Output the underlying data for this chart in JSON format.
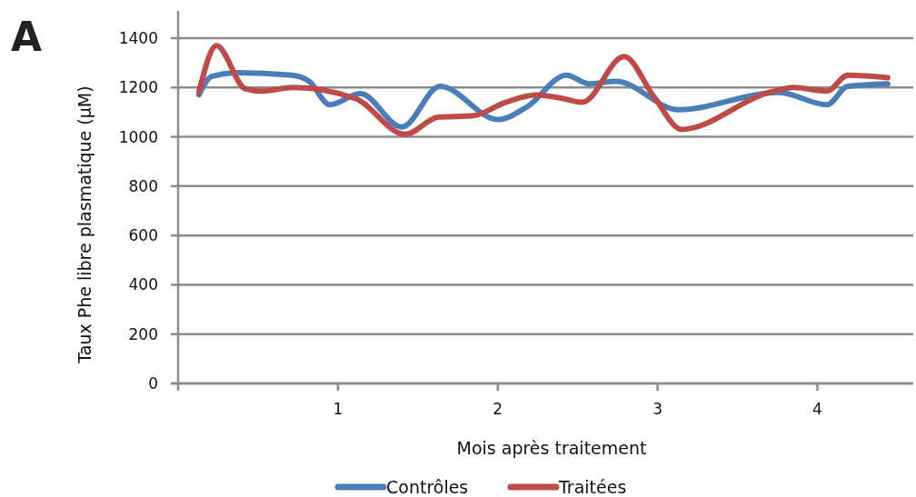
{
  "chart_data": {
    "type": "line",
    "xlabel": "Mois après traitement",
    "ylabel": "Taux Phe libre plasmatique (µM)",
    "annotations": [
      "A"
    ],
    "xlim": [
      0,
      4.6
    ],
    "xticks": [
      1,
      2,
      3,
      4
    ],
    "ylim": [
      0,
      1400
    ],
    "yticks": [
      0,
      200,
      400,
      600,
      800,
      1000,
      1200,
      1400
    ],
    "grid": "y",
    "legend": "bottom",
    "marker": "none",
    "line_style": "solid",
    "series": [
      {
        "name": "Contrôles",
        "color": "#4a7ebb",
        "x": [
          0.13,
          0.21,
          0.37,
          0.71,
          0.82,
          0.95,
          1.14,
          1.4,
          1.64,
          2.0,
          2.18,
          2.43,
          2.57,
          2.74,
          3.13,
          3.76,
          4.06,
          4.19,
          4.44
        ],
        "values": [
          1170,
          1245,
          1260,
          1250,
          1225,
          1130,
          1175,
          1040,
          1205,
          1070,
          1120,
          1250,
          1215,
          1225,
          1110,
          1180,
          1130,
          1205,
          1215
        ]
      },
      {
        "name": "Traitées",
        "color": "#be4b48",
        "x": [
          0.13,
          0.24,
          0.42,
          0.52,
          0.72,
          1.11,
          1.42,
          1.63,
          1.84,
          2.05,
          2.24,
          2.41,
          2.53,
          2.79,
          2.98,
          3.15,
          3.7,
          3.85,
          4.06,
          4.19,
          4.44
        ],
        "values": [
          1180,
          1370,
          1195,
          1185,
          1200,
          1155,
          1010,
          1080,
          1085,
          1140,
          1170,
          1155,
          1140,
          1325,
          1160,
          1030,
          1180,
          1200,
          1185,
          1250,
          1240
        ]
      }
    ]
  }
}
